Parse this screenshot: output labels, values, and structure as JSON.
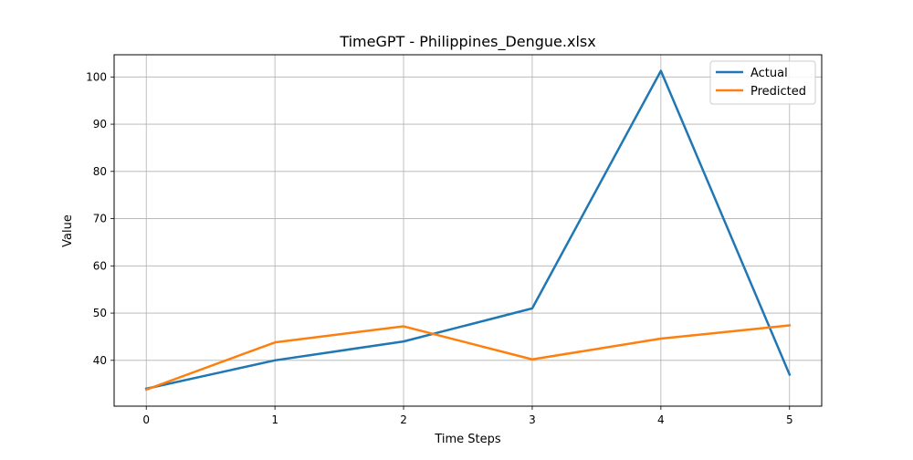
{
  "chart_data": {
    "type": "line",
    "title": "TimeGPT - Philippines_Dengue.xlsx",
    "xlabel": "Time Steps",
    "ylabel": "Value",
    "x": [
      0,
      1,
      2,
      3,
      4,
      5
    ],
    "xticks": [
      "0",
      "1",
      "2",
      "3",
      "4",
      "5"
    ],
    "yticks": [
      "40",
      "50",
      "60",
      "70",
      "80",
      "90",
      "100"
    ],
    "ytick_values": [
      40,
      50,
      60,
      70,
      80,
      90,
      100
    ],
    "xlim": [
      -0.25,
      5.25
    ],
    "ylim": [
      30.3,
      104.7
    ],
    "grid": true,
    "legend_position": "top-right",
    "series": [
      {
        "name": "Actual",
        "color": "#1f77b4",
        "values": [
          34,
          40,
          44,
          51,
          101.3,
          37
        ]
      },
      {
        "name": "Predicted",
        "color": "#ff7f0e",
        "values": [
          33.8,
          43.8,
          47.2,
          40.2,
          44.6,
          47.4
        ]
      }
    ]
  }
}
